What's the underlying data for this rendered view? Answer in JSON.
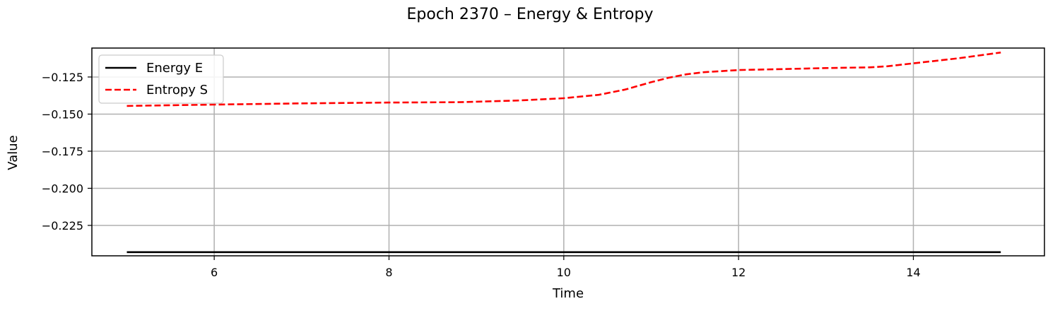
{
  "chart_data": {
    "type": "line",
    "title": "Epoch 2370 – Energy & Entropy",
    "xlabel": "Time",
    "ylabel": "Value",
    "xlim": [
      4.6,
      15.5
    ],
    "ylim": [
      -0.2455,
      -0.1055
    ],
    "xticks": [
      6,
      8,
      10,
      12,
      14
    ],
    "xtick_labels": [
      "6",
      "8",
      "10",
      "12",
      "14"
    ],
    "yticks": [
      -0.225,
      -0.2,
      -0.175,
      -0.15,
      -0.125
    ],
    "ytick_labels": [
      "−0.225",
      "−0.200",
      "−0.175",
      "−0.150",
      "−0.125"
    ],
    "grid": true,
    "legend_position": "top-left",
    "series": [
      {
        "name": "Energy E",
        "color": "#000000",
        "style": "solid",
        "x": [
          5.0,
          15.0
        ],
        "y": [
          -0.243,
          -0.243
        ]
      },
      {
        "name": "Entropy S",
        "color": "#ff0000",
        "style": "dashed",
        "x": [
          5.0,
          6.0,
          7.0,
          8.0,
          8.8,
          9.5,
          10.0,
          10.4,
          10.7,
          11.0,
          11.2,
          11.4,
          11.6,
          12.0,
          12.5,
          13.0,
          13.5,
          13.7,
          14.0,
          14.5,
          15.0
        ],
        "y": [
          -0.1445,
          -0.1436,
          -0.1428,
          -0.1422,
          -0.142,
          -0.1408,
          -0.1393,
          -0.137,
          -0.1335,
          -0.1285,
          -0.1255,
          -0.1232,
          -0.1218,
          -0.1203,
          -0.1197,
          -0.119,
          -0.1185,
          -0.1178,
          -0.1158,
          -0.1125,
          -0.1085
        ]
      }
    ]
  }
}
